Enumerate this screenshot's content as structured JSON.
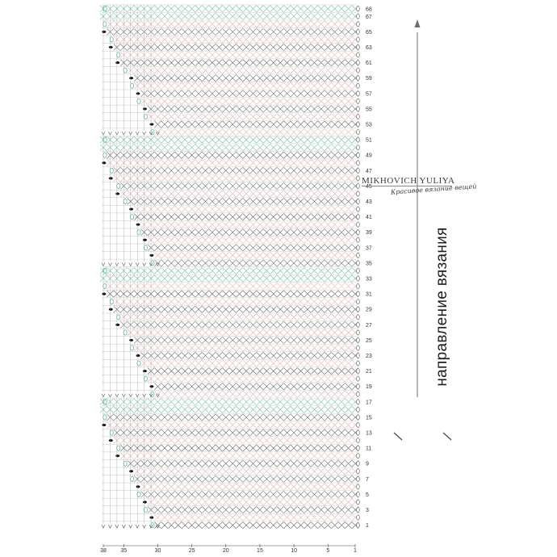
{
  "colors": {
    "green": "#6bb5a2",
    "pink": "#d79a9a",
    "dark": "#3b3b3b",
    "grid": "#b4b4b4"
  },
  "row_numbers": [
    68,
    67,
    65,
    63,
    61,
    59,
    57,
    55,
    53,
    51,
    49,
    47,
    45,
    43,
    41,
    39,
    37,
    35,
    33,
    31,
    29,
    27,
    25,
    23,
    21,
    19,
    17,
    15,
    13,
    11,
    9,
    7,
    5,
    3,
    1
  ],
  "stitch_numbers": [
    38,
    35,
    30,
    25,
    20,
    15,
    10,
    5,
    1
  ],
  "direction_label": "направление вязания",
  "designer": {
    "name": "MIKHOVICH YULIYA",
    "tagline": "Красивое вязание вещей"
  },
  "icons": [
    "arrow-up-icon",
    "chain-stitch-icon",
    "single-crochet-icon",
    "slip-stitch-icon"
  ]
}
